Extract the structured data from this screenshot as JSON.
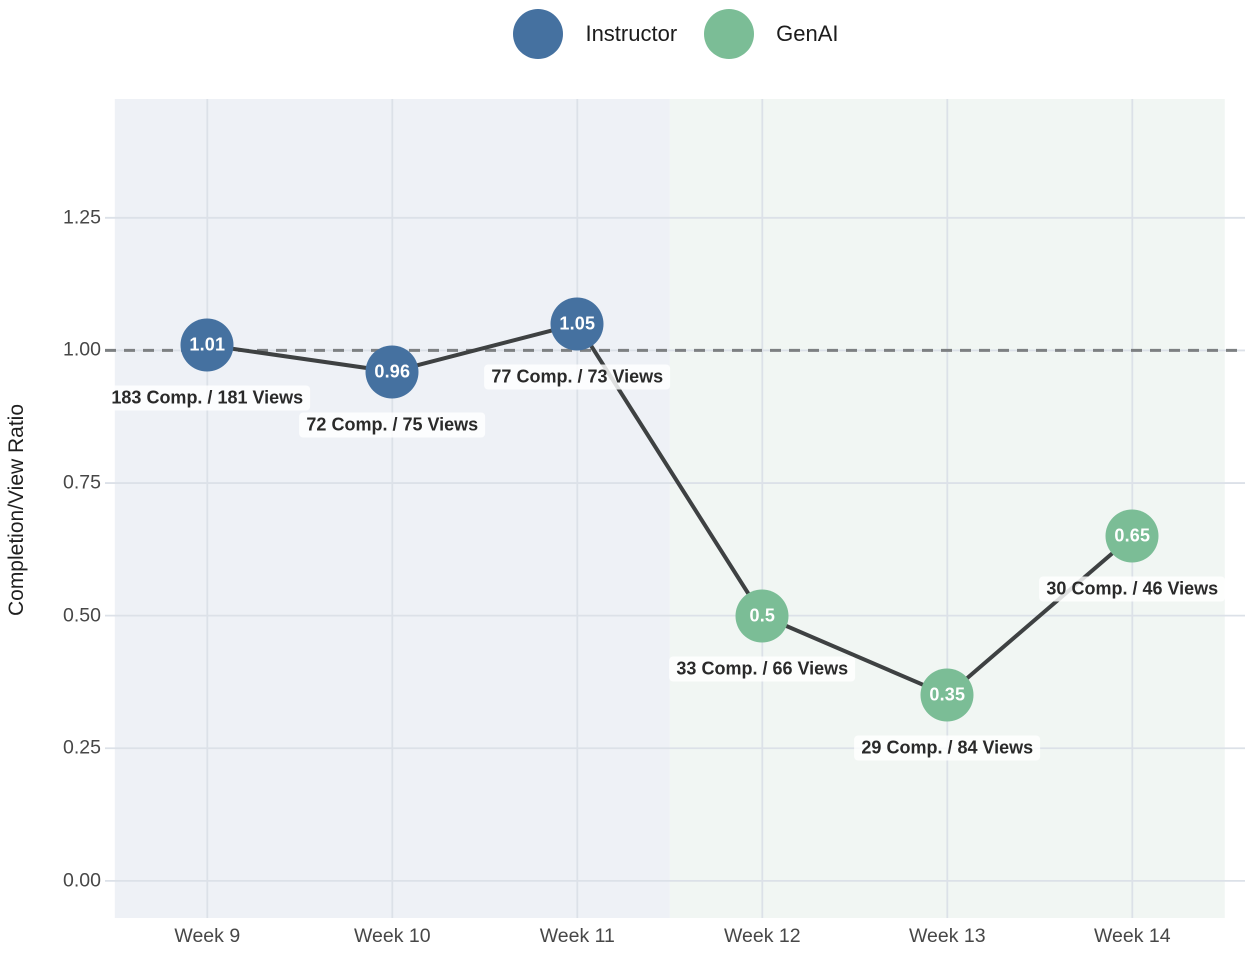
{
  "chart_data": {
    "type": "line",
    "title": "",
    "ylabel": "Completion/View Ratio",
    "categories": [
      "Week 9",
      "Week 10",
      "Week 11",
      "Week 12",
      "Week 13",
      "Week 14"
    ],
    "series": [
      {
        "name": "Instructor",
        "color": "#4571a0",
        "points": [
          {
            "x": 0,
            "week": "Week 9",
            "value": 1.01,
            "value_label": "1.01",
            "completions": 183,
            "views": 181,
            "annotation": "183 Comp. / 181 Views"
          },
          {
            "x": 1,
            "week": "Week 10",
            "value": 0.96,
            "value_label": "0.96",
            "completions": 72,
            "views": 75,
            "annotation": "72 Comp. / 75 Views"
          },
          {
            "x": 2,
            "week": "Week 11",
            "value": 1.05,
            "value_label": "1.05",
            "completions": 77,
            "views": 73,
            "annotation": "77 Comp. / 73 Views"
          }
        ]
      },
      {
        "name": "GenAI",
        "color": "#7bbd96",
        "points": [
          {
            "x": 3,
            "week": "Week 12",
            "value": 0.5,
            "value_label": "0.5",
            "completions": 33,
            "views": 66,
            "annotation": "33 Comp. / 66 Views"
          },
          {
            "x": 4,
            "week": "Week 13",
            "value": 0.35,
            "value_label": "0.35",
            "completions": 29,
            "views": 84,
            "annotation": "29 Comp. / 84 Views"
          },
          {
            "x": 5,
            "week": "Week 14",
            "value": 0.65,
            "value_label": "0.65",
            "completions": 30,
            "views": 46,
            "annotation": "30 Comp. / 46 Views"
          }
        ]
      }
    ],
    "line_color": "#3e4142",
    "reference_line": {
      "value": 1.0,
      "color": "#7d8082",
      "style": "dashed"
    },
    "yticks": [
      {
        "value": 0.0,
        "label": "0.00"
      },
      {
        "value": 0.25,
        "label": "0.25"
      },
      {
        "value": 0.5,
        "label": "0.50"
      },
      {
        "value": 0.75,
        "label": "0.75"
      },
      {
        "value": 1.0,
        "label": "1.00"
      },
      {
        "value": 1.25,
        "label": "1.25"
      }
    ],
    "ylim": [
      -0.07,
      1.474
    ],
    "grid": true,
    "grid_color": "#dce1e8",
    "legend_position": "top-center",
    "regions": [
      {
        "name": "instructor-region",
        "x_start": -0.5,
        "x_end": 2.5,
        "color": "#eef1f6"
      },
      {
        "name": "genai-region",
        "x_start": 2.5,
        "x_end": 5.5,
        "color": "#f1f6f3"
      }
    ]
  }
}
